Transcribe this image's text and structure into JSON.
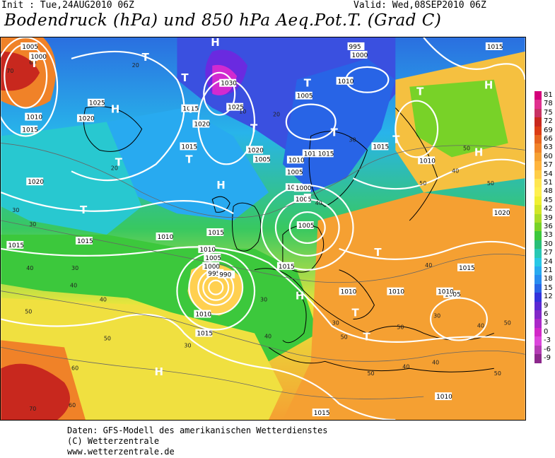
{
  "header": {
    "init": "Init : Tue,24AUG2010 06Z",
    "valid": "Valid: Wed,08SEP2010 06Z",
    "title": "Bodendruck (hPa) und 850 hPa Aeq.Pot.T. (Grad C)"
  },
  "footer": {
    "line1": "Daten: GFS-Modell des amerikanischen Wetterdienstes",
    "line2": "(C) Wetterzentrale",
    "line3": "www.wetterzentrale.de"
  },
  "legend": {
    "labels": [
      "81",
      "78",
      "75",
      "72",
      "69",
      "66",
      "63",
      "60",
      "57",
      "54",
      "51",
      "48",
      "45",
      "42",
      "39",
      "36",
      "33",
      "30",
      "27",
      "24",
      "21",
      "18",
      "15",
      "12",
      "9",
      "6",
      "3",
      "0",
      "-3",
      "-6",
      "-9"
    ],
    "colors": [
      "#d4007a",
      "#e0308e",
      "#c83264",
      "#c8281e",
      "#dc3c14",
      "#e6641e",
      "#f08228",
      "#f5a032",
      "#ffb43c",
      "#ffcd46",
      "#ffe650",
      "#fff050",
      "#f0f032",
      "#d2e628",
      "#aadc28",
      "#78d228",
      "#3cc83c",
      "#28be78",
      "#28c8b4",
      "#28c8e6",
      "#28aaf0",
      "#288cf0",
      "#2864e6",
      "#3232dc",
      "#5a28d2",
      "#8228c8",
      "#aa28c8",
      "#d228c8",
      "#dc46dc",
      "#b43cb4",
      "#8c288c"
    ]
  },
  "map": {
    "pressure_labels": [
      "1005",
      "1000",
      "1010",
      "1015",
      "1025",
      "1020",
      "1015",
      "1030",
      "1025",
      "1020",
      "1015",
      "995",
      "1000",
      "1010",
      "1005",
      "1010",
      "1005",
      "1015",
      "1020",
      "1005",
      "1010",
      "1015",
      "1020",
      "1000",
      "1005",
      "1015",
      "1005",
      "1015",
      "1010",
      "1015",
      "1010",
      "1005",
      "1000",
      "995",
      "990",
      "1010",
      "1015",
      "1015",
      "1010",
      "1010",
      "1005",
      "1010",
      "1015",
      "1015",
      "1020",
      "1015",
      "1010",
      "1010",
      "1015"
    ],
    "temp_labels": [
      "70",
      "60",
      "30",
      "30",
      "20",
      "20",
      "10",
      "20",
      "30",
      "40",
      "50",
      "30",
      "40",
      "40",
      "50",
      "30",
      "30",
      "40",
      "30",
      "50",
      "30",
      "40",
      "50",
      "50",
      "60",
      "40",
      "50",
      "40",
      "40",
      "40",
      "50",
      "50",
      "60",
      "50",
      "70",
      "40",
      "50"
    ],
    "highs": [
      "H",
      "H",
      "H",
      "H",
      "H",
      "H",
      "H"
    ],
    "lows": [
      "T",
      "T",
      "T",
      "T",
      "T",
      "T",
      "T",
      "T",
      "T",
      "T",
      "T",
      "T",
      "T",
      "T",
      "T",
      "T"
    ]
  }
}
